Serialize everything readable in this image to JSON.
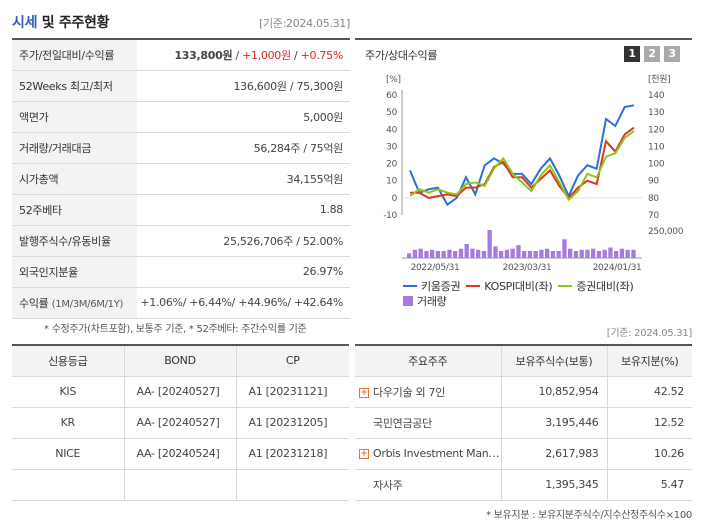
{
  "header": {
    "title_a": "시세",
    "title_b": " 및 주주현황",
    "as_of": "[기준:2024.05.31]"
  },
  "market": {
    "rows": [
      {
        "label": "주가/전일대비/수익률",
        "price": "133,800원",
        "sep1": " / ",
        "change": "+1,000원",
        "sep2": " / ",
        "pct": "+0.75%"
      },
      {
        "label": "52Weeks 최고/최저",
        "value": "136,600원 / 75,300원"
      },
      {
        "label": "액면가",
        "value": "5,000원"
      },
      {
        "label": "거래량/거래대금",
        "value": "56,284주 / 75억원"
      },
      {
        "label": "시가총액",
        "value": "34,155억원"
      },
      {
        "label": "52주베타",
        "value": "1.88"
      },
      {
        "label": "발행주식수/유동비율",
        "value": "25,526,706주 / 52.00%"
      },
      {
        "label": "외국인지분율",
        "value": "26.97%"
      },
      {
        "label": "수익률",
        "sublabel": "(1M/3M/6M/1Y)",
        "value": "+1.06%/ +6.44%/ +44.96%/ +42.64%"
      }
    ],
    "footnote": "* 수정주가(차트포함), 보통주 기준, * 52주베타: 주간수익률 기준"
  },
  "chart_panel": {
    "title": "주가/상대수익률",
    "pages": [
      "1",
      "2",
      "3"
    ],
    "active_page": "1"
  },
  "chart_data": {
    "type": "line",
    "left_unit": "[%]",
    "right_unit": "[천원]",
    "ylim_left": [
      -10,
      60
    ],
    "ylim_right": [
      70,
      140
    ],
    "left_ticks": [
      "60",
      "50",
      "40",
      "30",
      "20",
      "10",
      "0",
      "-10"
    ],
    "right_ticks": [
      "140",
      "130",
      "120",
      "110",
      "100",
      "90",
      "80",
      "70"
    ],
    "volume_tick": "250,000",
    "x_labels": [
      "2022/05/31",
      "2023/03/31",
      "2024/01/31"
    ],
    "colors": {
      "kiwoom": "#2a6fd6",
      "kospi": "#d83a1c",
      "sector": "#8fc41f",
      "volume": "#a57cde"
    },
    "series": [
      {
        "name": "키움증권",
        "values": [
          16,
          3,
          5,
          6,
          -4,
          0,
          12,
          2,
          19,
          23,
          20,
          14,
          14,
          8,
          17,
          23,
          13,
          1,
          13,
          19,
          17,
          46,
          42,
          53,
          54
        ]
      },
      {
        "name": "KOSPI대비(좌)",
        "values": [
          3,
          3,
          0,
          1,
          2,
          1,
          6,
          6,
          8,
          18,
          21,
          12,
          12,
          6,
          11,
          16,
          7,
          0,
          6,
          10,
          8,
          33,
          27,
          37,
          41
        ]
      },
      {
        "name": "증권대비(좌)",
        "values": [
          1,
          5,
          3,
          5,
          3,
          2,
          8,
          9,
          7,
          17,
          23,
          14,
          9,
          4,
          13,
          19,
          9,
          -1,
          4,
          14,
          12,
          24,
          26,
          35,
          39
        ]
      }
    ],
    "volume": [
      0.2,
      0.35,
      0.4,
      0.3,
      0.35,
      0.3,
      0.3,
      0.35,
      0.3,
      0.4,
      0.6,
      0.4,
      0.35,
      0.3,
      1.2,
      0.5,
      0.3,
      0.35,
      0.4,
      0.55,
      0.3,
      0.3,
      0.3,
      0.35,
      0.4,
      0.3,
      0.3,
      0.8,
      0.4,
      0.3,
      0.35,
      0.35,
      0.4,
      0.3,
      0.35,
      0.45,
      0.3,
      0.4,
      0.35,
      0.35
    ],
    "legend": {
      "kiwoom": "키움증권",
      "kospi": "KOSPI대비(좌)",
      "sector": "증권대비(좌)",
      "volume": "거래량"
    }
  },
  "as_of2": "[기준: 2024.05.31]",
  "credit": {
    "headers": [
      "신용등급",
      "BOND",
      "CP"
    ],
    "rows": [
      {
        "agency": "KIS",
        "bond": "AA-  [20240527]",
        "cp": "A1  [20231121]"
      },
      {
        "agency": "KR",
        "bond": "AA-  [20240527]",
        "cp": "A1  [20231205]"
      },
      {
        "agency": "NICE",
        "bond": "AA-  [20240524]",
        "cp": "A1  [20231218]"
      },
      {
        "agency": "",
        "bond": "",
        "cp": ""
      }
    ]
  },
  "shareholders": {
    "headers": [
      "주요주주",
      "보유주식수(보통)",
      "보유지분(%)"
    ],
    "rows": [
      {
        "name": "다우기술 외 7인",
        "shares": "10,852,954",
        "pct": "42.52",
        "expand": true
      },
      {
        "name": "국민연금공단",
        "shares": "3,195,446",
        "pct": "12.52",
        "expand": false
      },
      {
        "name": "Orbis Investment Man…",
        "shares": "2,617,983",
        "pct": "10.26",
        "expand": true
      },
      {
        "name": "자사주",
        "shares": "1,395,345",
        "pct": "5.47",
        "expand": false
      }
    ],
    "footnote": "* 보유지분 : 보유지분주식수/지수산정주식수×100"
  }
}
